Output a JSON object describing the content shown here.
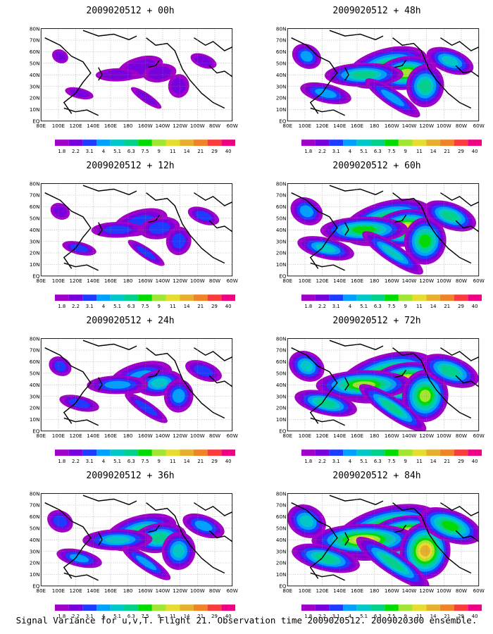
{
  "panels": [
    {
      "title": "2009020512 + 00h",
      "level": 0
    },
    {
      "title": "2009020512 + 48h",
      "level": 4
    },
    {
      "title": "2009020512 + 12h",
      "level": 1
    },
    {
      "title": "2009020512 + 60h",
      "level": 5
    },
    {
      "title": "2009020512 + 24h",
      "level": 2
    },
    {
      "title": "2009020512 + 72h",
      "level": 6
    },
    {
      "title": "2009020512 + 36h",
      "level": 3
    },
    {
      "title": "2009020512 + 84h",
      "level": 7
    }
  ],
  "lon_labels": [
    "80E",
    "100E",
    "120E",
    "140E",
    "160E",
    "180",
    "160W",
    "140W",
    "120W",
    "100W",
    "80W",
    "60W"
  ],
  "lat_labels": [
    "EQ",
    "10N",
    "20N",
    "30N",
    "40N",
    "50N",
    "60N",
    "70N",
    "80N"
  ],
  "colorbar": {
    "labels": [
      "1.8",
      "2.2",
      "3.1",
      "4",
      "5.1",
      "6.3",
      "7.5",
      "9",
      "11",
      "14",
      "21",
      "29",
      "40"
    ],
    "colors": [
      "#a000c8",
      "#7800dc",
      "#1e3cff",
      "#00a0ff",
      "#00c8c8",
      "#00d28c",
      "#00dc00",
      "#a0e632",
      "#e6dc32",
      "#e6af2d",
      "#f08228",
      "#fa3c3c",
      "#f00082"
    ]
  },
  "footer": "Signal Variance for u,v,T. Flight 21. Observation time 2009020512. 2009020300 ensemble."
}
